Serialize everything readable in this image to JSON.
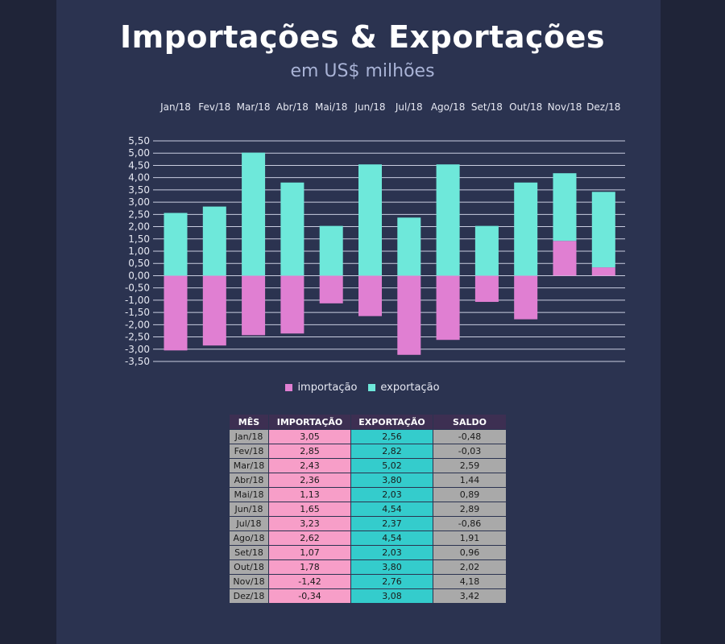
{
  "title": "Importações & Exportações",
  "subtitle": "em US$ milhões",
  "colors": {
    "importacao": "#e07fd2",
    "exportacao": "#6ee8da",
    "background": "#2b3350"
  },
  "chart_data": {
    "type": "bar",
    "stacked": true,
    "title": "Importações & Exportações",
    "subtitle": "em US$ milhões",
    "categories": [
      "Jan/18",
      "Fev/18",
      "Mar/18",
      "Abr/18",
      "Mai/18",
      "Jun/18",
      "Jul/18",
      "Ago/18",
      "Set/18",
      "Out/18",
      "Nov/18",
      "Dez/18"
    ],
    "series": [
      {
        "name": "importação",
        "values": [
          -3.05,
          -2.85,
          -2.43,
          -2.36,
          -1.13,
          -1.65,
          -3.23,
          -2.62,
          -1.07,
          -1.78,
          1.42,
          0.34
        ]
      },
      {
        "name": "exportação",
        "values": [
          2.56,
          2.82,
          5.02,
          3.8,
          2.03,
          4.54,
          2.37,
          4.54,
          2.03,
          3.8,
          2.76,
          3.08
        ]
      }
    ],
    "y_ticks": [
      "5,50",
      "5,00",
      "4,50",
      "4,00",
      "3,50",
      "3,00",
      "2,50",
      "2,00",
      "1,50",
      "1,00",
      "0,50",
      "0,00",
      "-0,50",
      "-1,00",
      "-1,50",
      "-2,00",
      "-2,50",
      "-3,00",
      "-3,50"
    ],
    "ylim": [
      -3.5,
      5.5
    ],
    "grid": true,
    "legend": "bottom",
    "category_labels_position": "top"
  },
  "table": {
    "headers": [
      "MÊS",
      "IMPORTAÇÃO",
      "EXPORTAÇÃO",
      "SALDO"
    ],
    "rows": [
      [
        "Jan/18",
        "3,05",
        "2,56",
        "-0,48"
      ],
      [
        "Fev/18",
        "2,85",
        "2,82",
        "-0,03"
      ],
      [
        "Mar/18",
        "2,43",
        "5,02",
        "2,59"
      ],
      [
        "Abr/18",
        "2,36",
        "3,80",
        "1,44"
      ],
      [
        "Mai/18",
        "1,13",
        "2,03",
        "0,89"
      ],
      [
        "Jun/18",
        "1,65",
        "4,54",
        "2,89"
      ],
      [
        "Jul/18",
        "3,23",
        "2,37",
        "-0,86"
      ],
      [
        "Ago/18",
        "2,62",
        "4,54",
        "1,91"
      ],
      [
        "Set/18",
        "1,07",
        "2,03",
        "0,96"
      ],
      [
        "Out/18",
        "1,78",
        "3,80",
        "2,02"
      ],
      [
        "Nov/18",
        "-1,42",
        "2,76",
        "4,18"
      ],
      [
        "Dez/18",
        "-0,34",
        "3,08",
        "3,42"
      ]
    ]
  }
}
